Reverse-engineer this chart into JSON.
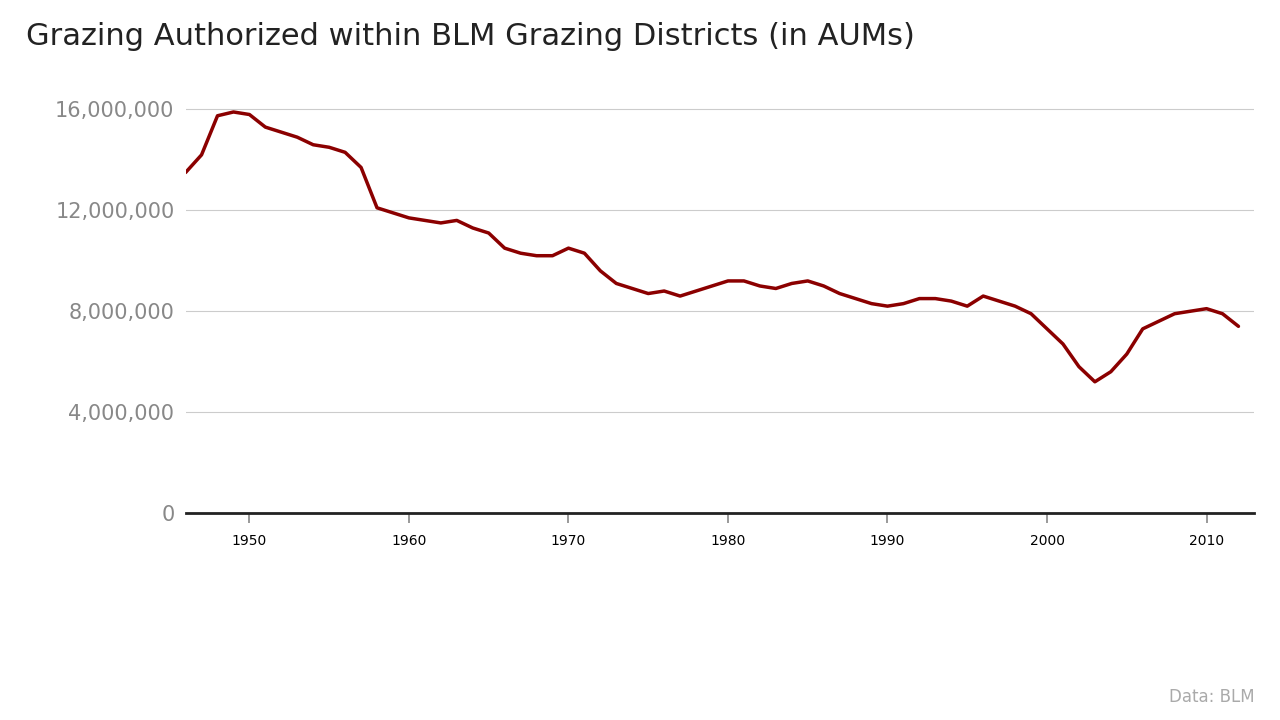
{
  "title": "Grazing Authorized within BLM Grazing Districts (in AUMs)",
  "line_color": "#8B0000",
  "background_color": "#ffffff",
  "line_width": 2.5,
  "years": [
    1946,
    1947,
    1948,
    1949,
    1950,
    1951,
    1952,
    1953,
    1954,
    1955,
    1956,
    1957,
    1958,
    1959,
    1960,
    1961,
    1962,
    1963,
    1964,
    1965,
    1966,
    1967,
    1968,
    1969,
    1970,
    1971,
    1972,
    1973,
    1974,
    1975,
    1976,
    1977,
    1978,
    1979,
    1980,
    1981,
    1982,
    1983,
    1984,
    1985,
    1986,
    1987,
    1988,
    1989,
    1990,
    1991,
    1992,
    1993,
    1994,
    1995,
    1996,
    1997,
    1998,
    1999,
    2000,
    2001,
    2002,
    2003,
    2004,
    2005,
    2006,
    2007,
    2008,
    2009,
    2010,
    2011,
    2012
  ],
  "values": [
    13500000,
    14200000,
    15750000,
    15900000,
    15800000,
    15300000,
    15100000,
    14900000,
    14600000,
    14500000,
    14300000,
    13700000,
    12100000,
    11900000,
    11700000,
    11600000,
    11500000,
    11600000,
    11300000,
    11100000,
    10500000,
    10300000,
    10200000,
    10200000,
    10500000,
    10300000,
    9600000,
    9100000,
    8900000,
    8700000,
    8800000,
    8600000,
    8800000,
    9000000,
    9200000,
    9200000,
    9000000,
    8900000,
    9100000,
    9200000,
    9000000,
    8700000,
    8500000,
    8300000,
    8200000,
    8300000,
    8500000,
    8500000,
    8400000,
    8200000,
    8600000,
    8400000,
    8200000,
    7900000,
    7300000,
    6700000,
    5800000,
    5200000,
    5600000,
    6300000,
    7300000,
    7600000,
    7900000,
    8000000,
    8100000,
    7900000,
    7400000
  ],
  "yticks": [
    0,
    4000000,
    8000000,
    12000000,
    16000000
  ],
  "ytick_labels": [
    "0",
    "4,000,000",
    "8,000,000",
    "12,000,000",
    "16,000,000"
  ],
  "xticks": [
    1950,
    1960,
    1970,
    1980,
    1990,
    2000,
    2010
  ],
  "xlim": [
    1946,
    2013
  ],
  "ylim": [
    -4500000,
    17200000
  ],
  "source_text": "Data: BLM",
  "title_fontsize": 22,
  "tick_fontsize": 15,
  "source_fontsize": 12,
  "grid_color": "#cccccc",
  "spine_color": "#222222",
  "tick_color": "#888888",
  "title_color": "#222222"
}
